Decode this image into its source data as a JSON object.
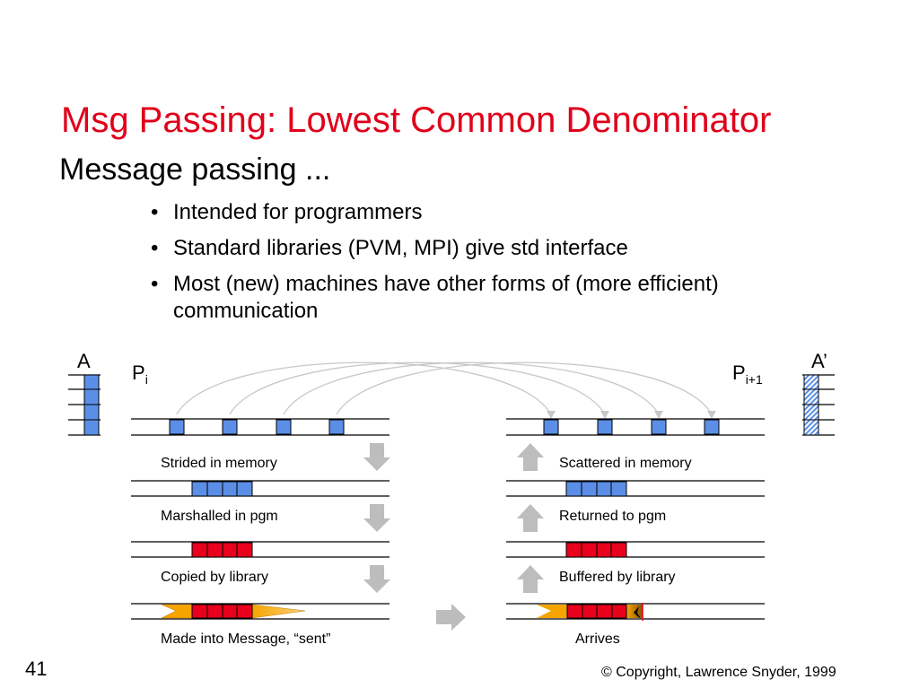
{
  "slide": {
    "title": "Msg Passing: Lowest Common Denominator",
    "subtitle": "Message passing ...",
    "bullets": [
      "Intended for programmers",
      "Standard libraries (PVM, MPI) give std interface",
      "Most (new) machines have other forms of (more efficient) communication"
    ],
    "page_number": "41",
    "copyright": "© Copyright, Lawrence Snyder, 1999"
  },
  "diagram": {
    "array_left_label": "A",
    "array_right_label": "A’",
    "proc_left": {
      "base": "P",
      "sub": "i"
    },
    "proc_right": {
      "base": "P",
      "sub": "i+1"
    },
    "left_stages": [
      "Strided in memory",
      "Marshalled in pgm",
      "Copied by library",
      "Made into Message, “sent”"
    ],
    "right_stages": [
      "Scattered in memory",
      "Returned to pgm",
      "Buffered by library",
      "Arrives"
    ],
    "colors": {
      "data_blue": "#5b8ee6",
      "data_red": "#e8001c",
      "message_orange": "#f5a400",
      "arrow_gray": "#c0c0c0",
      "title_red": "#e0001a"
    }
  }
}
